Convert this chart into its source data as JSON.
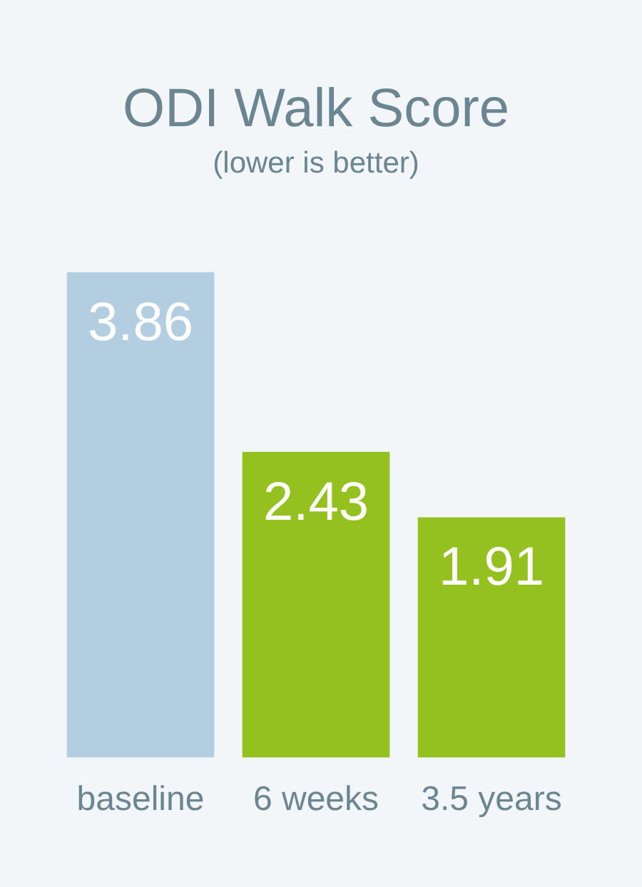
{
  "chart_data": {
    "type": "bar",
    "title": "ODI Walk Score",
    "subtitle": "(lower is better)",
    "categories": [
      "baseline",
      "6 weeks",
      "3.5 years"
    ],
    "values": [
      3.86,
      2.43,
      1.91
    ],
    "colors": [
      "#b3cde1",
      "#94c11f",
      "#94c11f"
    ],
    "data_labels": true,
    "grid": false,
    "legend": false
  }
}
